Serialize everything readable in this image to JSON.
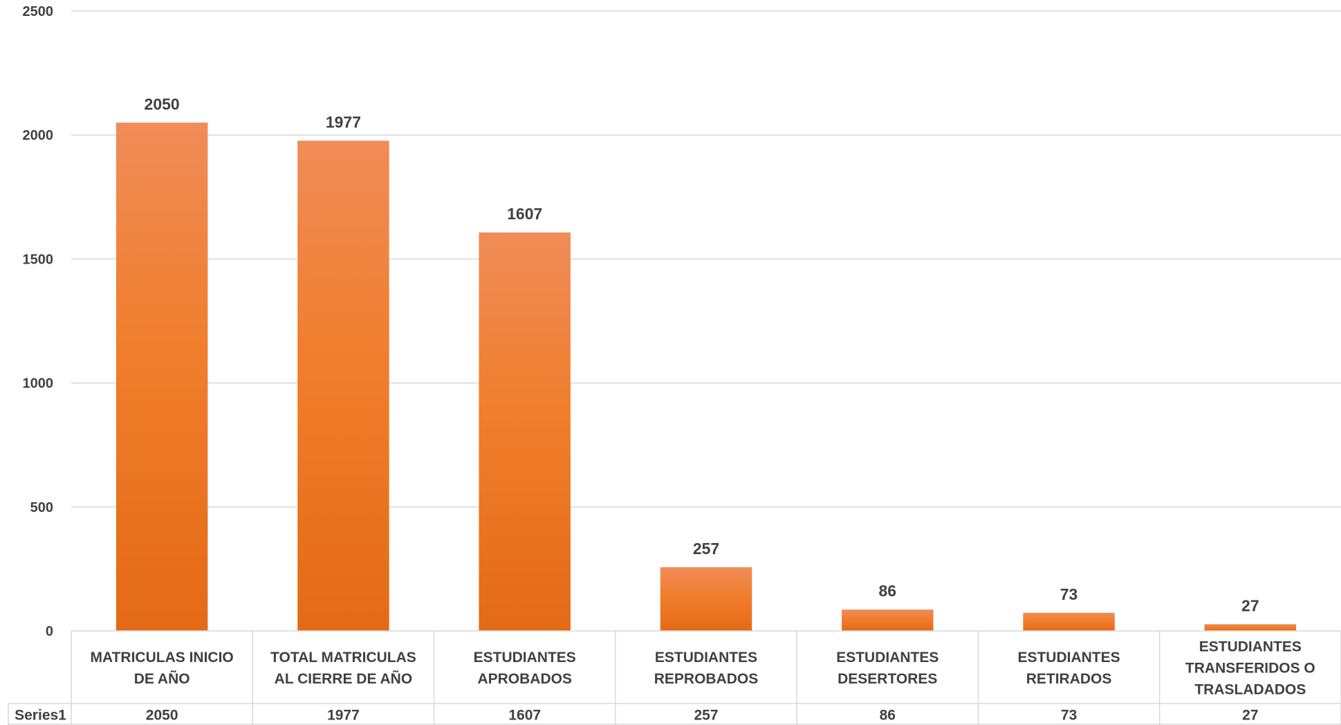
{
  "chart_data": {
    "type": "bar",
    "categories": [
      [
        "MATRICULAS INICIO",
        "DE AÑO"
      ],
      [
        "TOTAL MATRICULAS",
        "AL CIERRE DE AÑO"
      ],
      [
        "ESTUDIANTES",
        "APROBADOS"
      ],
      [
        "ESTUDIANTES",
        "REPROBADOS"
      ],
      [
        "ESTUDIANTES",
        "DESERTORES"
      ],
      [
        "ESTUDIANTES",
        "RETIRADOS"
      ],
      [
        "ESTUDIANTES",
        "TRANSFERIDOS O",
        "TRASLADADOS"
      ]
    ],
    "series": [
      {
        "name": "Series1",
        "values": [
          2050,
          1977,
          1607,
          257,
          86,
          73,
          27
        ]
      }
    ],
    "yticks": [
      0,
      500,
      1000,
      1500,
      2000,
      2500
    ],
    "ylim": [
      0,
      2500
    ],
    "grid": true,
    "data_labels": true,
    "data_table": true,
    "colors": {
      "bar_top": "#f08c58",
      "bar_mid": "#f07e2c",
      "bar_bottom": "#e46a16",
      "grid": "#d9d9d9",
      "text": "#404040"
    }
  }
}
